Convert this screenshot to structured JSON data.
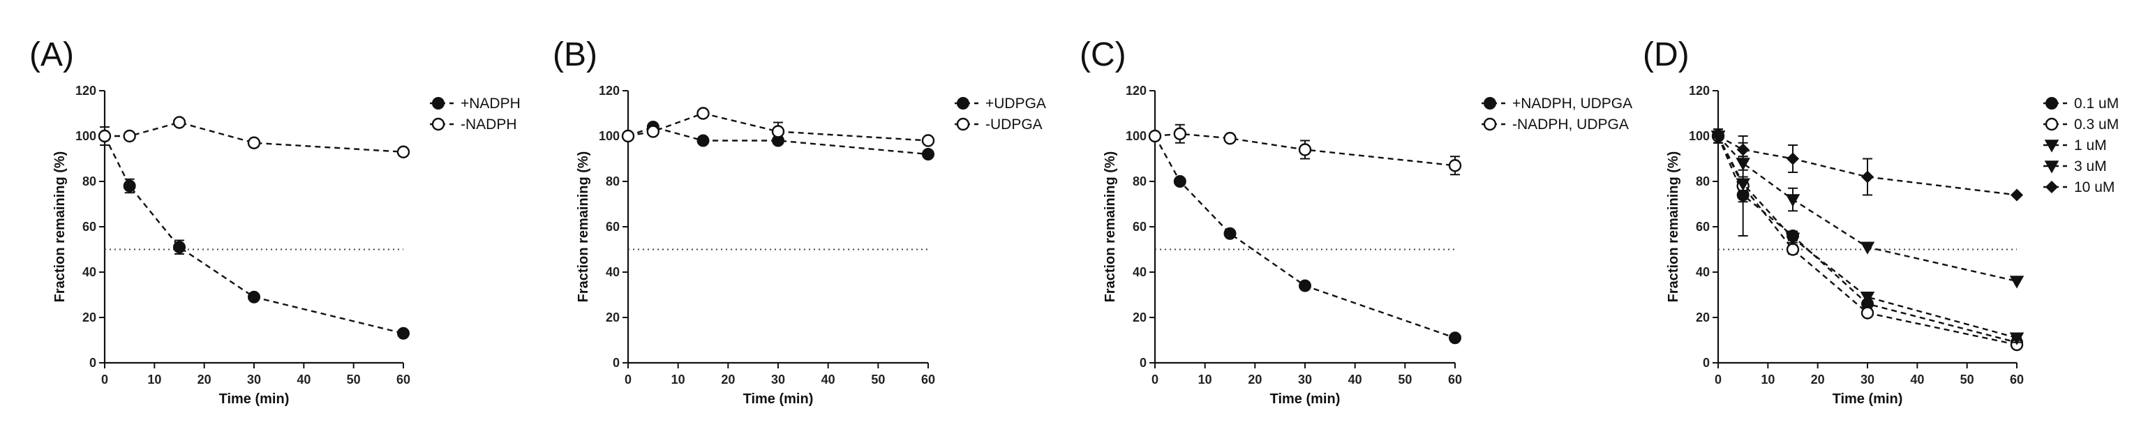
{
  "chart_data": [
    {
      "type": "line",
      "panel_label": "(A)",
      "xlabel": "Time (min)",
      "ylabel": "Fraction remaining  (%)",
      "xlim": [
        0,
        60
      ],
      "ylim": [
        0,
        120
      ],
      "xticks": [
        0,
        10,
        20,
        30,
        40,
        50,
        60
      ],
      "yticks": [
        0,
        20,
        40,
        60,
        80,
        100,
        120
      ],
      "reference_line": 50,
      "x": [
        0,
        5,
        15,
        30,
        60
      ],
      "series": [
        {
          "name": "+NADPH",
          "marker": "filled-circle",
          "values": [
            100,
            78,
            51,
            29,
            13
          ],
          "errors": [
            4,
            3,
            3,
            1,
            1
          ]
        },
        {
          "name": "-NADPH",
          "marker": "open-circle",
          "values": [
            100,
            100,
            106,
            97,
            93
          ],
          "errors": [
            0,
            0,
            1,
            1,
            1
          ]
        }
      ]
    },
    {
      "type": "line",
      "panel_label": "(B)",
      "xlabel": "Time (min)",
      "ylabel": "Fraction remaining  (%)",
      "xlim": [
        0,
        60
      ],
      "ylim": [
        0,
        120
      ],
      "xticks": [
        0,
        10,
        20,
        30,
        40,
        50,
        60
      ],
      "yticks": [
        0,
        20,
        40,
        60,
        80,
        100,
        120
      ],
      "reference_line": 50,
      "x": [
        0,
        5,
        15,
        30,
        60
      ],
      "series": [
        {
          "name": "+UDPGA",
          "marker": "filled-circle",
          "values": [
            100,
            104,
            98,
            98,
            92
          ],
          "errors": [
            1,
            1,
            1,
            1,
            1
          ]
        },
        {
          "name": "-UDPGA",
          "marker": "open-circle",
          "values": [
            100,
            102,
            110,
            102,
            98
          ],
          "errors": [
            1,
            1,
            1,
            4,
            1
          ]
        }
      ]
    },
    {
      "type": "line",
      "panel_label": "(C)",
      "xlabel": "Time (min)",
      "ylabel": "Fraction remaining  (%)",
      "xlim": [
        0,
        60
      ],
      "ylim": [
        0,
        120
      ],
      "xticks": [
        0,
        10,
        20,
        30,
        40,
        50,
        60
      ],
      "yticks": [
        0,
        20,
        40,
        60,
        80,
        100,
        120
      ],
      "reference_line": 50,
      "x": [
        0,
        5,
        15,
        30,
        60
      ],
      "series": [
        {
          "name": "+NADPH, UDPGA",
          "marker": "filled-circle",
          "values": [
            100,
            80,
            57,
            34,
            11
          ],
          "errors": [
            1,
            1,
            1,
            1,
            1
          ]
        },
        {
          "name": "-NADPH, UDPGA",
          "marker": "open-circle",
          "values": [
            100,
            101,
            99,
            94,
            87
          ],
          "errors": [
            1,
            4,
            1,
            4,
            4
          ]
        }
      ]
    },
    {
      "type": "line",
      "panel_label": "(D)",
      "xlabel": "Time (min)",
      "ylabel": "Fraction remaining  (%)",
      "xlim": [
        0,
        60
      ],
      "ylim": [
        0,
        120
      ],
      "xticks": [
        0,
        10,
        20,
        30,
        40,
        50,
        60
      ],
      "yticks": [
        0,
        20,
        40,
        60,
        80,
        100,
        120
      ],
      "reference_line": 50,
      "x": [
        0,
        5,
        15,
        30,
        60
      ],
      "series": [
        {
          "name": "0.1 uM",
          "marker": "filled-circle",
          "values": [
            100,
            74,
            56,
            26,
            9
          ],
          "errors": [
            3,
            3,
            2,
            1,
            2
          ]
        },
        {
          "name": "0.3 uM",
          "marker": "open-circle",
          "values": [
            100,
            78,
            50,
            22,
            8
          ],
          "errors": [
            3,
            22,
            2,
            1,
            1
          ]
        },
        {
          "name": "1 uM",
          "marker": "triangle-down",
          "values": [
            100,
            79,
            55,
            29,
            11
          ],
          "errors": [
            3,
            3,
            2,
            1,
            2
          ]
        },
        {
          "name": "3 uM",
          "marker": "triangle-down",
          "values": [
            100,
            88,
            72,
            51,
            36
          ],
          "errors": [
            3,
            3,
            5,
            1,
            1
          ]
        },
        {
          "name": "10 uM",
          "marker": "diamond",
          "values": [
            100,
            94,
            90,
            82,
            74
          ],
          "errors": [
            3,
            3,
            6,
            8,
            1
          ]
        }
      ]
    }
  ]
}
